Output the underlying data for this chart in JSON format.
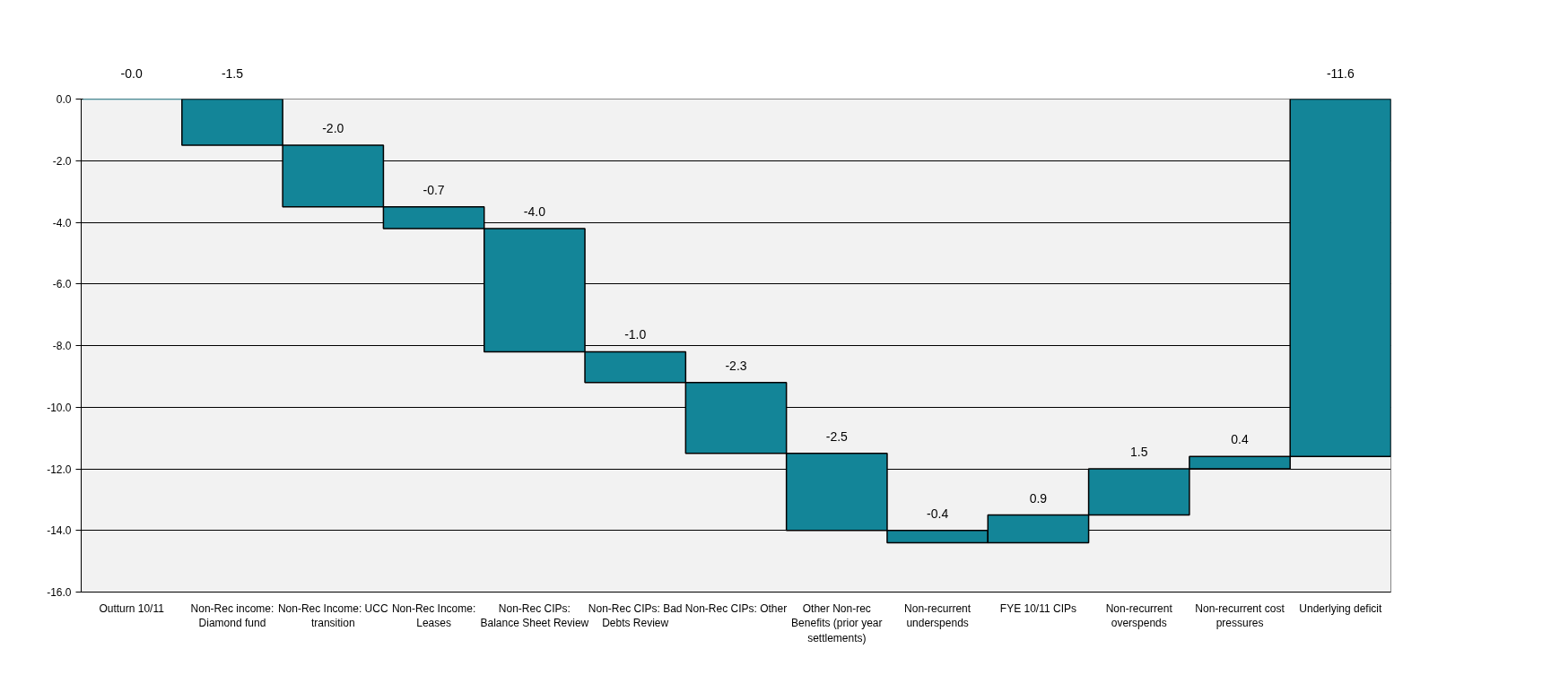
{
  "chart_data": {
    "type": "bar",
    "categories": [
      "Outturn 10/11",
      "Non-Rec income: Diamond fund",
      "Non-Rec Income: UCC transition",
      "Non-Rec Income: Leases",
      "Non-Rec CIPs: Balance Sheet Review",
      "Non-Rec CIPs: Bad Debts Review",
      "Non-Rec CIPs: Other",
      "Other Non-rec Benefits (prior year settlements)",
      "Non-recurrent underspends",
      "FYE 10/11 CIPs",
      "Non-recurrent overspends",
      "Non-recurrent cost pressures",
      "Underlying deficit"
    ],
    "values": [
      0,
      -1.5,
      -2.0,
      -0.7,
      -4.0,
      -1.0,
      -2.3,
      -2.5,
      -0.4,
      0.9,
      1.5,
      0.4,
      -11.6
    ],
    "base": [
      0,
      0,
      -1.5,
      -3.5,
      -4.2,
      -8.2,
      -9.2,
      -11.5,
      -14.0,
      -14.4,
      -13.5,
      -12.0,
      0
    ],
    "value_labels": [
      "-0.0",
      "-1.5",
      "-2.0",
      "-0.7",
      "-4.0",
      "-1.0",
      "-2.3",
      "-2.5",
      "-0.4",
      "0.9",
      "1.5",
      "0.4",
      "-11.6"
    ],
    "color": "#138598",
    "ylim": [
      -16,
      0
    ],
    "yticks": [
      {
        "value": 0,
        "label": "0.0"
      },
      {
        "value": -2,
        "label": "-2.0"
      },
      {
        "value": -4,
        "label": "-4.0"
      },
      {
        "value": -6,
        "label": "-6.0"
      },
      {
        "value": -8,
        "label": "-8.0"
      },
      {
        "value": -10,
        "label": "-10.0"
      },
      {
        "value": -12,
        "label": "-12.0"
      },
      {
        "value": -14,
        "label": "-14.0"
      },
      {
        "value": -16,
        "label": "-16.0"
      }
    ],
    "grid": "y"
  }
}
